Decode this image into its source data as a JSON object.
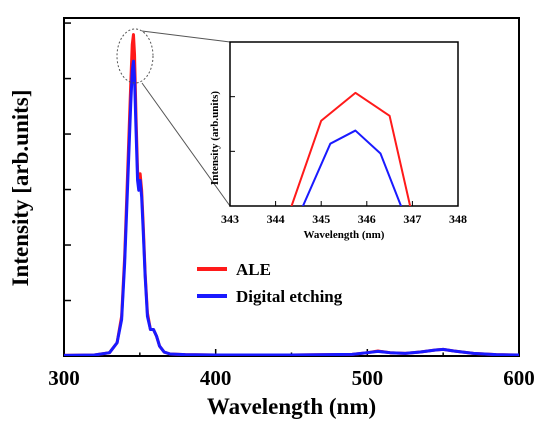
{
  "chart_data": [
    {
      "id": "main",
      "type": "line",
      "xlabel": "Wavelength (nm)",
      "ylabel": "Intensity [arb.units]",
      "xlim": [
        300,
        600
      ],
      "ylim": [
        0,
        1.02
      ],
      "xticks": [
        300,
        400,
        500,
        600
      ],
      "xtick_labels": [
        "300",
        "400",
        "500",
        "600"
      ],
      "yticks_unlabeled": 6,
      "grid": false,
      "legend": "center-right",
      "series": [
        {
          "name": "ALE",
          "color": "#ff1a1a",
          "x": [
            300,
            320,
            330,
            335,
            338,
            340,
            342,
            344,
            345,
            345.8,
            346.5,
            347.5,
            348.5,
            349.3,
            350.2,
            351.2,
            352.2,
            353.5,
            355,
            357,
            359,
            361,
            363,
            366,
            370,
            380,
            400,
            450,
            490,
            500,
            507,
            515,
            525,
            535,
            545,
            550,
            557,
            570,
            585,
            600
          ],
          "y": [
            0.002,
            0.003,
            0.01,
            0.04,
            0.12,
            0.3,
            0.56,
            0.82,
            0.94,
            0.97,
            0.91,
            0.72,
            0.56,
            0.52,
            0.55,
            0.5,
            0.4,
            0.25,
            0.13,
            0.08,
            0.08,
            0.06,
            0.03,
            0.012,
            0.006,
            0.004,
            0.003,
            0.003,
            0.005,
            0.01,
            0.015,
            0.01,
            0.008,
            0.012,
            0.018,
            0.02,
            0.015,
            0.008,
            0.004,
            0.003
          ]
        },
        {
          "name": "Digital etching",
          "color": "#1a1aff",
          "x": [
            300,
            320,
            330,
            335,
            338,
            340,
            342,
            344,
            345,
            345.8,
            346.5,
            347.5,
            348.5,
            349.3,
            350.2,
            351.2,
            352.2,
            353.5,
            355,
            357,
            359,
            361,
            363,
            366,
            370,
            380,
            400,
            450,
            490,
            500,
            507,
            515,
            525,
            535,
            545,
            550,
            557,
            570,
            585,
            600
          ],
          "y": [
            0.002,
            0.003,
            0.01,
            0.04,
            0.11,
            0.28,
            0.52,
            0.76,
            0.86,
            0.89,
            0.84,
            0.68,
            0.53,
            0.5,
            0.53,
            0.48,
            0.38,
            0.24,
            0.12,
            0.08,
            0.08,
            0.06,
            0.03,
            0.012,
            0.006,
            0.004,
            0.003,
            0.003,
            0.005,
            0.01,
            0.014,
            0.01,
            0.008,
            0.012,
            0.018,
            0.02,
            0.015,
            0.008,
            0.004,
            0.003
          ]
        }
      ]
    },
    {
      "id": "inset",
      "type": "line",
      "xlabel": "Wavelength (nm)",
      "ylabel": "Intensity (arb.units)",
      "xlim": [
        343,
        348
      ],
      "ylim": [
        0,
        1
      ],
      "xticks": [
        343,
        344,
        345,
        346,
        347,
        348
      ],
      "xtick_labels": [
        "343",
        "344",
        "345",
        "346",
        "347",
        "348"
      ],
      "yticks_unlabeled": 3,
      "grid": false,
      "series": [
        {
          "name": "ALE",
          "color": "#ff1a1a",
          "x": [
            344.35,
            345.0,
            345.75,
            346.5,
            346.95
          ],
          "y": [
            0.0,
            0.52,
            0.69,
            0.55,
            0.0
          ]
        },
        {
          "name": "Digital etching",
          "color": "#1a1aff",
          "x": [
            344.6,
            345.2,
            345.75,
            346.3,
            346.75
          ],
          "y": [
            0.0,
            0.38,
            0.46,
            0.32,
            0.0
          ]
        }
      ]
    }
  ]
}
